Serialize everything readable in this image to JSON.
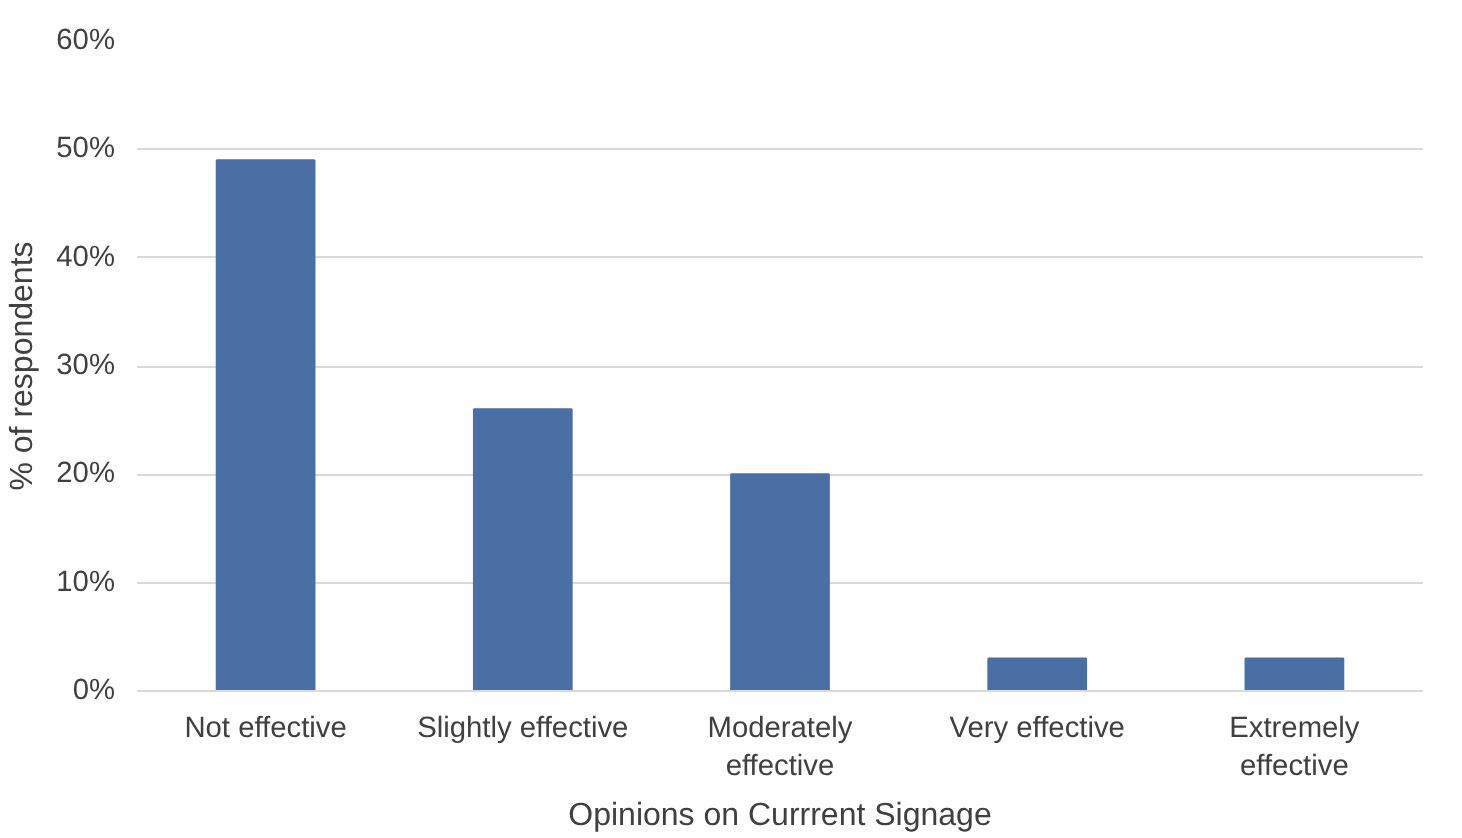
{
  "chart_data": {
    "type": "bar",
    "xlabel": "Opinions on Currrent Signage",
    "ylabel": "% of respondents",
    "categories": [
      "Not effective",
      "Slightly effective",
      "Moderately effective",
      "Very effective",
      "Extremely effective"
    ],
    "values": [
      49,
      26,
      20,
      3,
      3
    ],
    "color": "#4a6fa5",
    "ylim": [
      0,
      60
    ],
    "yticks": [
      {
        "value": 0,
        "label": "0%"
      },
      {
        "value": 10,
        "label": "10%"
      },
      {
        "value": 20,
        "label": "20%"
      },
      {
        "value": 30,
        "label": "30%"
      },
      {
        "value": 40,
        "label": "40%"
      },
      {
        "value": 50,
        "label": "50%"
      },
      {
        "value": 60,
        "label": "60%"
      }
    ],
    "grid": "y"
  }
}
